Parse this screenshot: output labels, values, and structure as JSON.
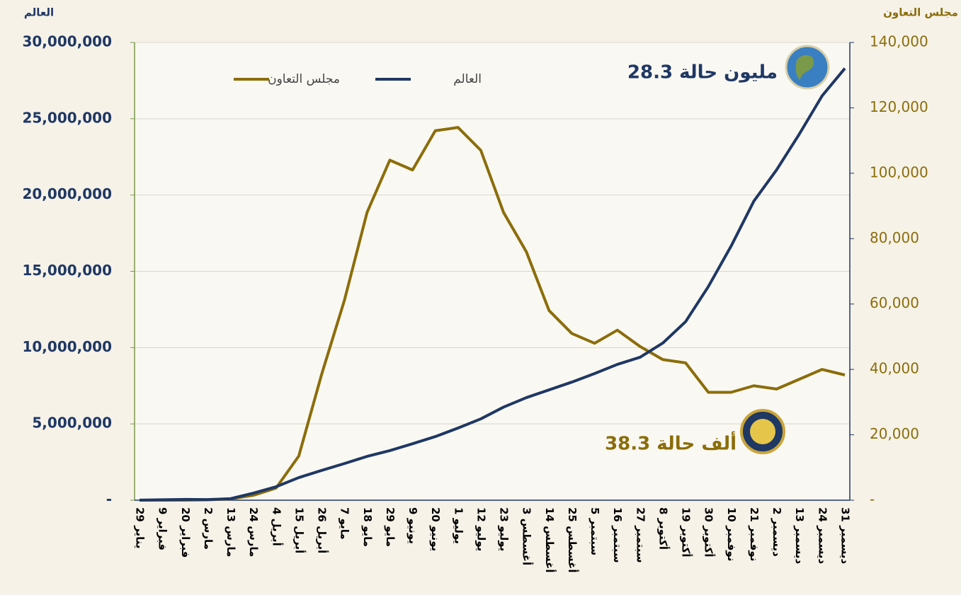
{
  "chart_data": {
    "type": "line",
    "y_label": "العالم",
    "y2_label": "مجلس التعاون",
    "annotations": [
      "28.3 مليون حالة",
      "38.3 ألف حالة"
    ],
    "categories": [
      "29 يناير",
      "9 فبراير",
      "20 فبراير",
      "2 مارس",
      "13 مارس",
      "24 مارس",
      "4 أبريل",
      "15 أبريل",
      "26 أبريل",
      "7 مايو",
      "18 مايو",
      "29 مايو",
      "9 يونيو",
      "20 يونيو",
      "1 يوليو",
      "12 يوليو",
      "23 يوليو",
      "3 أغسطس",
      "14 أغسطس",
      "25 أغسطس",
      "5 سبتمبر",
      "16 سبتمبر",
      "27 سبتمبر",
      "8 أكتوبر",
      "19 أكتوبر",
      "30 أكتوبر",
      "10 نوفمبر",
      "21 نوفمبر",
      "2 ديسمبر",
      "13 ديسمبر",
      "24 ديسمبر",
      "31 ديسمبر"
    ],
    "series": [
      {
        "name": "العالم",
        "color": "#1f3864",
        "values": [
          6000,
          30000,
          50000,
          40000,
          100000,
          460000,
          880000,
          1480000,
          1950000,
          2400000,
          2870000,
          3250000,
          3700000,
          4170000,
          4730000,
          5330000,
          6100000,
          6720000,
          7230000,
          7740000,
          8300000,
          8900000,
          9370000,
          10300000,
          11700000,
          14000000,
          16650000,
          19600000,
          21650000,
          24000000,
          26500000,
          28300000
        ]
      },
      {
        "name": "مجلس التعاون",
        "color": "#8b6d0a",
        "axis": "y2",
        "values": [
          0,
          0,
          0,
          100,
          400,
          1500,
          3700,
          13500,
          38400,
          61000,
          88000,
          104000,
          101000,
          113000,
          114000,
          107000,
          88000,
          76000,
          58000,
          51000,
          48000,
          52000,
          47000,
          43000,
          42000,
          33000,
          33000,
          35000,
          34000,
          37000,
          40000,
          38300
        ]
      }
    ],
    "ylim": [
      0,
      30000000
    ],
    "yticks": [
      {
        "value": 0,
        "label": "-"
      },
      {
        "value": 5000000,
        "label": "5,000,000"
      },
      {
        "value": 10000000,
        "label": "10,000,000"
      },
      {
        "value": 15000000,
        "label": "15,000,000"
      },
      {
        "value": 20000000,
        "label": "20,000,000"
      },
      {
        "value": 25000000,
        "label": "25,000,000"
      },
      {
        "value": 30000000,
        "label": "30,000,000"
      }
    ],
    "y2lim": [
      0,
      140000
    ],
    "y2ticks": [
      {
        "value": 0,
        "label": "-"
      },
      {
        "value": 20000,
        "label": "20,000"
      },
      {
        "value": 40000,
        "label": "40,000"
      },
      {
        "value": 60000,
        "label": "60,000"
      },
      {
        "value": 80000,
        "label": "80,000"
      },
      {
        "value": 100000,
        "label": "100,000"
      },
      {
        "value": 120000,
        "label": "120,000"
      },
      {
        "value": 140000,
        "label": "140,000"
      }
    ],
    "grid": true,
    "legend": "top-left"
  }
}
